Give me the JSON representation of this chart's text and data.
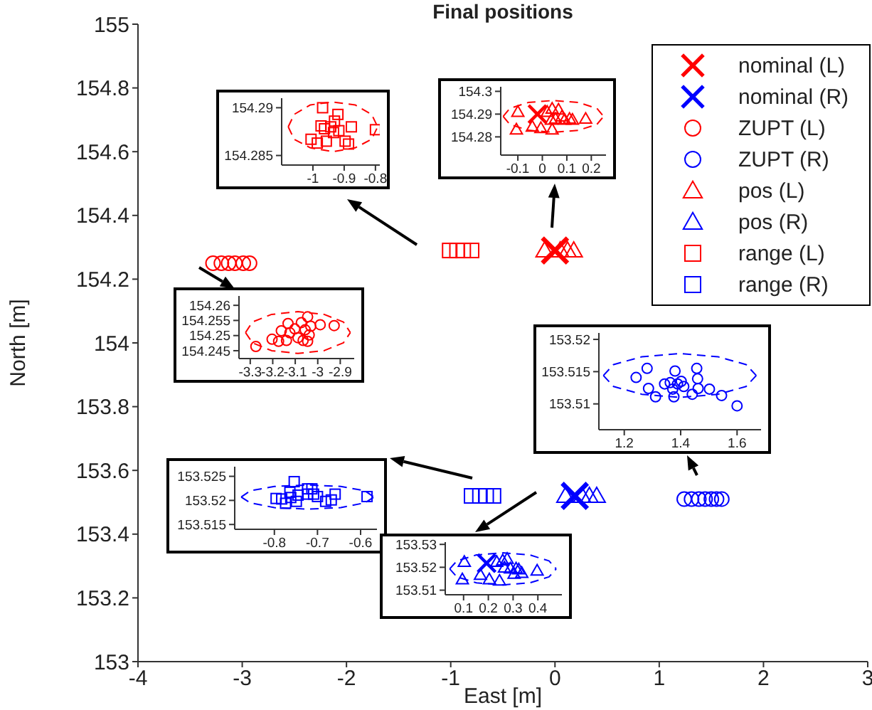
{
  "chart_data": [
    {
      "type": "scatter",
      "title": "Final positions",
      "xlabel": "East [m]",
      "ylabel": "North [m]",
      "xlim": [
        -4,
        3
      ],
      "ylim": [
        153,
        155
      ],
      "xticks": [
        -4,
        -3,
        -2,
        -1,
        0,
        1,
        2,
        3
      ],
      "yticks": [
        153,
        153.2,
        153.4,
        153.6,
        153.8,
        154,
        154.2,
        154.4,
        154.6,
        154.8,
        155
      ],
      "legend": "top right",
      "series": [
        {
          "name": "nominal (L)",
          "color": "#ff0000",
          "marker": "cross",
          "x": [
            0
          ],
          "values": [
            154.29
          ]
        },
        {
          "name": "nominal (R)",
          "color": "#0000ff",
          "marker": "cross",
          "x": [
            0.19
          ],
          "values": [
            153.52
          ]
        },
        {
          "name": "ZUPT (L)",
          "color": "#ff0000",
          "marker": "circle",
          "x": [
            -3.28,
            -3.2,
            -3.13,
            -3.07,
            -2.99,
            -2.93
          ],
          "values": [
            154.25,
            154.25,
            154.25,
            154.25,
            154.25,
            154.25
          ]
        },
        {
          "name": "ZUPT (R)",
          "color": "#0000ff",
          "marker": "circle",
          "x": [
            1.24,
            1.31,
            1.38,
            1.44,
            1.5,
            1.55,
            1.6
          ],
          "values": [
            153.51,
            153.51,
            153.51,
            153.51,
            153.51,
            153.51,
            153.51
          ]
        },
        {
          "name": "pos (L)",
          "color": "#ff0000",
          "marker": "triangle",
          "x": [
            -0.1,
            0.05,
            0.12,
            0.18
          ],
          "values": [
            154.29,
            154.29,
            154.29,
            154.29
          ]
        },
        {
          "name": "pos (R)",
          "color": "#0000ff",
          "marker": "triangle",
          "x": [
            0.1,
            0.26,
            0.33,
            0.4
          ],
          "values": [
            153.52,
            153.52,
            153.52,
            153.52
          ]
        },
        {
          "name": "range (L)",
          "color": "#ff0000",
          "marker": "square",
          "x": [
            -1.01,
            -0.94,
            -0.88,
            -0.8
          ],
          "values": [
            154.29,
            154.29,
            154.29,
            154.29
          ]
        },
        {
          "name": "range (R)",
          "color": "#0000ff",
          "marker": "square",
          "x": [
            -0.8,
            -0.72,
            -0.66,
            -0.59
          ],
          "values": [
            153.52,
            153.52,
            153.52,
            153.52
          ]
        }
      ]
    },
    {
      "type": "scatter",
      "xlim": [
        -1.1,
        -0.786
      ],
      "ylim": [
        154.284,
        154.291
      ],
      "xticks": [
        -1,
        -0.9,
        -0.8
      ],
      "yticks": [
        154.285,
        154.29
      ],
      "series": [
        {
          "color": "#ff0000",
          "marker": "square",
          "x": [
            -0.969,
            -0.92,
            -0.974,
            -0.931,
            -0.943,
            -0.963,
            -0.934,
            -0.917,
            -0.877,
            -0.8,
            -1.006,
            -0.986,
            -0.957,
            -0.897,
            -0.886
          ],
          "values": [
            154.29,
            154.2893,
            154.2881,
            154.2886,
            154.288,
            154.2878,
            154.2874,
            154.2876,
            154.288,
            154.2877,
            154.2867,
            154.2863,
            154.2865,
            154.2865,
            154.2862
          ]
        },
        {
          "type": "line",
          "line_style": "dashed",
          "color": "#ff0000",
          "x": [
            -1.079,
            -1.06,
            -1.008,
            -0.936,
            -0.865,
            -0.812,
            -0.793
          ],
          "values": [
            154.288,
            154.2893,
            154.2903,
            154.2906,
            154.2903,
            154.2893,
            154.288
          ]
        },
        {
          "type": "line",
          "line_style": "dashed",
          "color": "#ff0000",
          "x": [
            -1.079,
            -1.06,
            -1.008,
            -0.936,
            -0.865,
            -0.812,
            -0.793
          ],
          "values": [
            154.288,
            154.2867,
            154.2858,
            154.2854,
            154.2858,
            154.2867,
            154.288
          ]
        }
      ]
    },
    {
      "type": "scatter",
      "xlim": [
        -0.17,
        0.26
      ],
      "ylim": [
        154.272,
        154.302
      ],
      "xticks": [
        -0.1,
        0,
        0.1,
        0.2
      ],
      "yticks": [
        154.28,
        154.29,
        154.3
      ],
      "series": [
        {
          "color": "#ff0000",
          "marker": "triangle",
          "x": [
            -0.1,
            -0.106,
            -0.041,
            -0.006,
            0.04,
            0.02,
            0.04,
            0.066,
            0.037,
            0.054,
            0.08,
            0.091,
            0.111,
            0.123,
            0.177
          ],
          "values": [
            154.291,
            154.2833,
            154.2845,
            154.2839,
            154.2833,
            154.291,
            154.2924,
            154.292,
            154.2876,
            154.288,
            154.289,
            154.2876,
            154.288,
            154.2876,
            154.288
          ]
        },
        {
          "color": "#ff0000",
          "marker": "cross",
          "x": [
            -0.02
          ],
          "values": [
            154.29
          ]
        },
        {
          "type": "line",
          "line_style": "dashed",
          "color": "#ff0000",
          "x": [
            -0.16,
            -0.133,
            -0.058,
            0.045,
            0.148,
            0.223,
            0.25
          ],
          "values": [
            154.289,
            154.2925,
            154.2951,
            154.296,
            154.2951,
            154.2925,
            154.289
          ]
        },
        {
          "type": "line",
          "line_style": "dashed",
          "color": "#ff0000",
          "x": [
            -0.16,
            -0.133,
            -0.058,
            0.045,
            0.148,
            0.223,
            0.25
          ],
          "values": [
            154.289,
            154.2855,
            154.2829,
            154.282,
            154.2829,
            154.2855,
            154.289
          ]
        }
      ]
    },
    {
      "type": "scatter",
      "xlim": [
        -3.35,
        -2.838
      ],
      "ylim": [
        154.2424,
        154.2631
      ],
      "xticks": [
        -3.3,
        -3.2,
        -3.1,
        -3,
        -2.9
      ],
      "yticks": [
        154.245,
        154.25,
        154.255,
        154.26
      ],
      "series": [
        {
          "color": "#ff0000",
          "marker": "circle",
          "x": [
            -3.275,
            -3.203,
            -3.174,
            -3.162,
            -3.132,
            -3.139,
            -3.124,
            -3.102,
            -3.088,
            -3.073,
            -3.065,
            -3.056,
            -3.045,
            -3.031,
            -3.038,
            -3.045,
            -2.989,
            -2.927
          ],
          "values": [
            154.2464,
            154.2488,
            154.2481,
            154.2516,
            154.254,
            154.2484,
            154.2509,
            154.2522,
            154.2493,
            154.2543,
            154.2484,
            154.2519,
            154.2562,
            154.2531,
            154.2502,
            154.2481,
            154.2536,
            154.2533
          ]
        },
        {
          "type": "line",
          "line_style": "dashed",
          "color": "#ff0000",
          "x": [
            -3.321,
            -3.29,
            -3.205,
            -3.088,
            -2.972,
            -2.886,
            -2.855
          ],
          "values": [
            154.251,
            154.2545,
            154.257,
            154.2579,
            154.257,
            154.2545,
            154.251
          ]
        },
        {
          "type": "line",
          "line_style": "dashed",
          "color": "#ff0000",
          "x": [
            -3.321,
            -3.29,
            -3.205,
            -3.088,
            -2.972,
            -2.886,
            -2.855
          ],
          "values": [
            154.251,
            154.2476,
            154.245,
            154.2441,
            154.245,
            154.2476,
            154.251
          ]
        }
      ]
    },
    {
      "type": "scatter",
      "xlim": [
        1.11,
        1.685
      ],
      "ylim": [
        153.506,
        153.521
      ],
      "xticks": [
        1.2,
        1.4,
        1.6
      ],
      "yticks": [
        153.51,
        153.515,
        153.52
      ],
      "series": [
        {
          "color": "#0000ff",
          "marker": "circle",
          "x": [
            1.242,
            1.281,
            1.286,
            1.311,
            1.343,
            1.38,
            1.372,
            1.363,
            1.376,
            1.389,
            1.402,
            1.411,
            1.441,
            1.457,
            1.46,
            1.462,
            1.502,
            1.545,
            1.6
          ],
          "values": [
            153.5141,
            153.5155,
            153.5124,
            153.5111,
            153.5131,
            153.5151,
            153.5123,
            153.5133,
            153.5111,
            153.5131,
            153.5135,
            153.5127,
            153.5115,
            153.5155,
            153.5139,
            153.5124,
            153.5123,
            153.5113,
            153.5097
          ]
        },
        {
          "type": "line",
          "line_style": "dashed",
          "color": "#0000ff",
          "x": [
            1.126,
            1.162,
            1.262,
            1.397,
            1.533,
            1.632,
            1.668
          ],
          "values": [
            153.5144,
            153.5161,
            153.5173,
            153.5178,
            153.5173,
            153.5161,
            153.5144
          ]
        },
        {
          "type": "line",
          "line_style": "dashed",
          "color": "#0000ff",
          "x": [
            1.126,
            1.162,
            1.262,
            1.397,
            1.533,
            1.632,
            1.668
          ],
          "values": [
            153.5144,
            153.5127,
            153.5115,
            153.511,
            153.5115,
            153.5127,
            153.5144
          ]
        }
      ]
    },
    {
      "type": "scatter",
      "xlim": [
        -0.892,
        -0.562
      ],
      "ylim": [
        153.514,
        153.527
      ],
      "xticks": [
        -0.8,
        -0.7,
        -0.6
      ],
      "yticks": [
        153.515,
        153.52,
        153.525
      ],
      "series": [
        {
          "color": "#0000ff",
          "marker": "square",
          "x": [
            -0.754,
            -0.796,
            -0.783,
            -0.774,
            -0.764,
            -0.762,
            -0.745,
            -0.749,
            -0.723,
            -0.713,
            -0.723,
            -0.709,
            -0.7,
            -0.681,
            -0.668,
            -0.659,
            -0.585
          ],
          "values": [
            153.5239,
            153.5204,
            153.5203,
            153.5194,
            153.5217,
            153.5206,
            153.5211,
            153.5198,
            153.5224,
            153.5224,
            153.5213,
            153.5213,
            153.5208,
            153.5198,
            153.5201,
            153.5213,
            153.5208
          ]
        },
        {
          "type": "line",
          "line_style": "dashed",
          "color": "#0000ff",
          "x": [
            -0.877,
            -0.856,
            -0.8,
            -0.723,
            -0.646,
            -0.59,
            -0.569
          ],
          "values": [
            153.5207,
            153.522,
            153.5229,
            153.5232,
            153.5229,
            153.522,
            153.5207
          ]
        },
        {
          "type": "line",
          "line_style": "dashed",
          "color": "#0000ff",
          "x": [
            -0.877,
            -0.856,
            -0.8,
            -0.723,
            -0.646,
            -0.59,
            -0.569
          ],
          "values": [
            153.5207,
            153.5195,
            153.5185,
            153.5182,
            153.5185,
            153.5195,
            153.5207
          ]
        }
      ]
    },
    {
      "type": "scatter",
      "xlim": [
        0.026,
        0.497
      ],
      "ylim": [
        153.508,
        153.531
      ],
      "xticks": [
        0.1,
        0.2,
        0.3,
        0.4
      ],
      "yticks": [
        153.51,
        153.52,
        153.53
      ],
      "series": [
        {
          "color": "#0000ff",
          "marker": "triangle",
          "x": [
            0.103,
            0.095,
            0.168,
            0.204,
            0.245,
            0.234,
            0.258,
            0.276,
            0.265,
            0.289,
            0.312,
            0.323,
            0.304,
            0.335,
            0.397
          ],
          "values": [
            153.5224,
            153.5148,
            153.5167,
            153.5148,
            153.5142,
            153.5224,
            153.523,
            153.5237,
            153.5199,
            153.5195,
            153.5195,
            153.5191,
            153.5172,
            153.5176,
            153.5186
          ]
        },
        {
          "color": "#0000ff",
          "marker": "cross",
          "x": [
            0.193
          ],
          "values": [
            153.5218
          ]
        },
        {
          "type": "line",
          "line_style": "dashed",
          "color": "#0000ff",
          "x": [
            0.044,
            0.073,
            0.152,
            0.259,
            0.367,
            0.445,
            0.474
          ],
          "values": [
            153.5193,
            153.5228,
            153.5254,
            153.5263,
            153.5254,
            153.5228,
            153.5193
          ]
        },
        {
          "type": "line",
          "line_style": "dashed",
          "color": "#0000ff",
          "x": [
            0.044,
            0.073,
            0.152,
            0.259,
            0.367,
            0.445,
            0.474
          ],
          "values": [
            153.5193,
            153.5158,
            153.5132,
            153.5123,
            153.5132,
            153.5158,
            153.5193
          ]
        }
      ]
    }
  ]
}
